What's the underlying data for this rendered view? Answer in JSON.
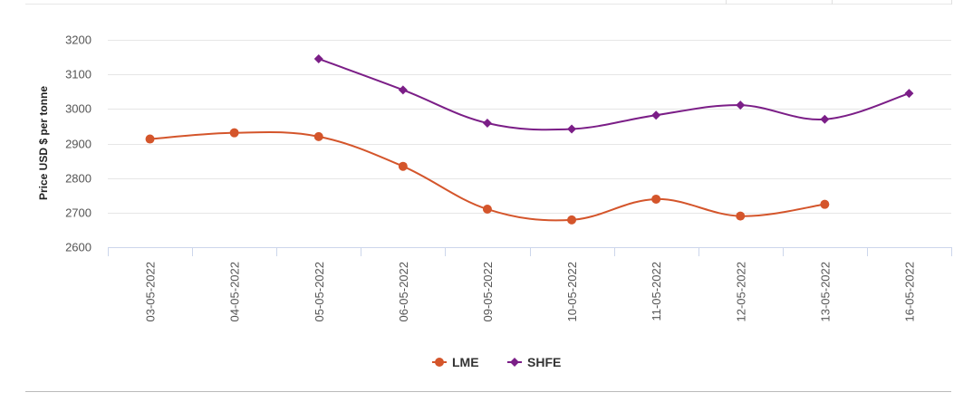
{
  "chart_data": {
    "type": "line",
    "title": "",
    "xlabel": "",
    "ylabel": "Price USD $ per tonne",
    "ylim": [
      2600,
      3200
    ],
    "yticks": [
      2600,
      2700,
      2800,
      2900,
      3000,
      3100,
      3200
    ],
    "grid": true,
    "legend_position": "bottom-center",
    "categories": [
      "03-05-2022",
      "04-05-2022",
      "05-05-2022",
      "06-05-2022",
      "09-05-2022",
      "10-05-2022",
      "11-05-2022",
      "12-05-2022",
      "13-05-2022",
      "16-05-2022"
    ],
    "series": [
      {
        "name": "LME",
        "color": "#d4552b",
        "marker": "circle",
        "values": [
          2913,
          2931,
          2920,
          2834,
          2710,
          2679,
          2739,
          2690,
          2724,
          null
        ]
      },
      {
        "name": "SHFE",
        "color": "#7b1e87",
        "marker": "diamond",
        "values": [
          null,
          null,
          3145,
          3055,
          2959,
          2942,
          2982,
          3011,
          2970,
          3045
        ]
      }
    ]
  }
}
